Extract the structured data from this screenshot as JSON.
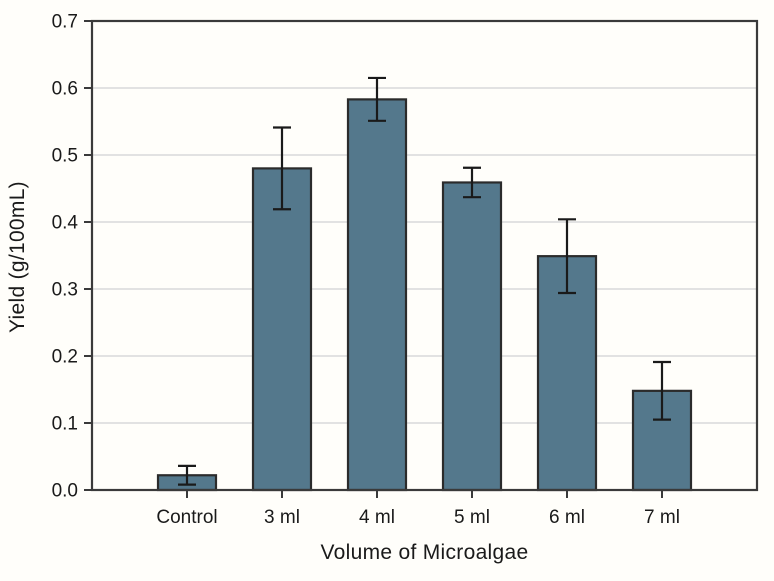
{
  "chart_data": {
    "type": "bar",
    "title": "",
    "xlabel": "Volume of Microalgae",
    "ylabel": "Yield (g/100mL)",
    "categories": [
      "Control",
      "3 ml",
      "4 ml",
      "5 ml",
      "6 ml",
      "7 ml"
    ],
    "values": [
      0.022,
      0.48,
      0.583,
      0.459,
      0.349,
      0.148
    ],
    "errors": [
      0.014,
      0.061,
      0.032,
      0.022,
      0.055,
      0.043
    ],
    "ylim": [
      0.0,
      0.7
    ],
    "ytick_step": 0.1,
    "ytick_labels": [
      "0.0",
      "0.1",
      "0.2",
      "0.3",
      "0.4",
      "0.5",
      "0.6",
      "0.7"
    ],
    "grid": "horizontal-only",
    "legend": "none",
    "colors": {
      "bar_fill": "#54788c",
      "bar_edge": "#2b2b2b",
      "error_bar": "#1a1a1a",
      "gridline": "#d9d9d9",
      "axis": "#3a3a3a",
      "tick_text": "#1a1a1a",
      "background": "#fffefa"
    }
  }
}
